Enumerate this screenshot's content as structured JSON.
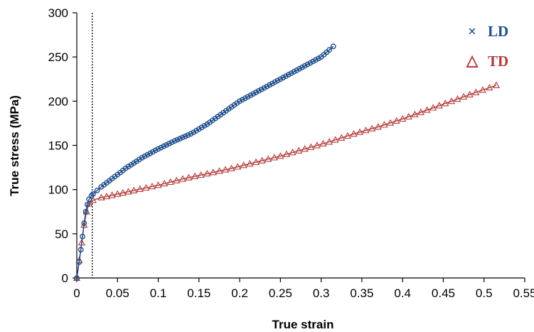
{
  "chart_data": {
    "type": "scatter",
    "xlabel": "True strain",
    "ylabel": "True stress (MPa)",
    "xlim": [
      0,
      0.55
    ],
    "ylim": [
      0,
      300
    ],
    "xticks": [
      "0",
      "0.05",
      "0.1",
      "0.15",
      "0.2",
      "0.25",
      "0.3",
      "0.35",
      "0.4",
      "0.45",
      "0.5",
      "0.55"
    ],
    "yticks": [
      "0",
      "50",
      "100",
      "150",
      "200",
      "250",
      "300"
    ],
    "grid": false,
    "legend_position": "top-right",
    "reference_line_x": 0.019,
    "series": [
      {
        "name": "LD",
        "legend_marker": "×",
        "marker": "circle",
        "color": "#1f4e8c",
        "x": [
          0,
          0.003,
          0.005,
          0.007,
          0.009,
          0.011,
          0.013,
          0.015,
          0.018,
          0.02,
          0.025,
          0.03,
          0.04,
          0.05,
          0.06,
          0.08,
          0.1,
          0.12,
          0.14,
          0.16,
          0.18,
          0.2,
          0.22,
          0.24,
          0.26,
          0.28,
          0.3,
          0.31,
          0.315
        ],
        "y": [
          0,
          18,
          32,
          47,
          62,
          75,
          83,
          89,
          93,
          95,
          99,
          103,
          110,
          117,
          124,
          136,
          146,
          155,
          163,
          174,
          187,
          200,
          210,
          220,
          230,
          240,
          250,
          258,
          262
        ]
      },
      {
        "name": "TD",
        "legend_marker": "△",
        "marker": "triangle",
        "color": "#b23b3b",
        "x": [
          0,
          0.003,
          0.006,
          0.009,
          0.012,
          0.015,
          0.02,
          0.03,
          0.05,
          0.07,
          0.1,
          0.13,
          0.16,
          0.19,
          0.22,
          0.25,
          0.28,
          0.31,
          0.34,
          0.37,
          0.4,
          0.43,
          0.46,
          0.49,
          0.515
        ],
        "y": [
          0,
          20,
          40,
          60,
          75,
          84,
          88,
          91,
          95,
          99,
          105,
          112,
          118,
          124,
          131,
          138,
          146,
          154,
          163,
          171,
          180,
          190,
          200,
          210,
          218
        ]
      }
    ]
  }
}
